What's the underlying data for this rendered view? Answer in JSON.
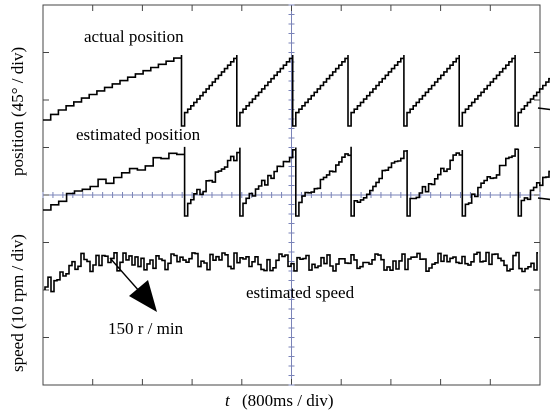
{
  "chart_data": {
    "type": "line",
    "title": "",
    "xlabel_italic": "t",
    "xlabel_rest": "(800ms / div)",
    "ylabel_top": "position (45° / div)",
    "ylabel_bottom": "speed (10 rpm / div)",
    "grid": true,
    "grid_divisions": {
      "x": 10,
      "y": 8
    },
    "annotations": {
      "actual": "actual position",
      "estimated": "estimated position",
      "speed": "estimated speed",
      "speed_value": "150 r / min"
    },
    "series": [
      {
        "name": "actual position",
        "period_s": 0.8,
        "range_deg": [
          0,
          270
        ],
        "sawtooth_resets_s": [
          2.23,
          3.12,
          4.02,
          4.91,
          5.81,
          6.7,
          7.6,
          8.49,
          9.39,
          10.28
        ],
        "start_s": 0.32
      },
      {
        "name": "estimated position",
        "period_s": 0.8,
        "range_deg": [
          0,
          270
        ],
        "sawtooth_resets_s": [
          2.28,
          3.17,
          4.07,
          4.96,
          5.86,
          6.75,
          7.65,
          8.54,
          9.44,
          10.33
        ],
        "start_s": 0.32
      },
      {
        "name": "estimated speed",
        "steady_value_rpm": 150,
        "ripple_rpm": 6
      }
    ]
  }
}
